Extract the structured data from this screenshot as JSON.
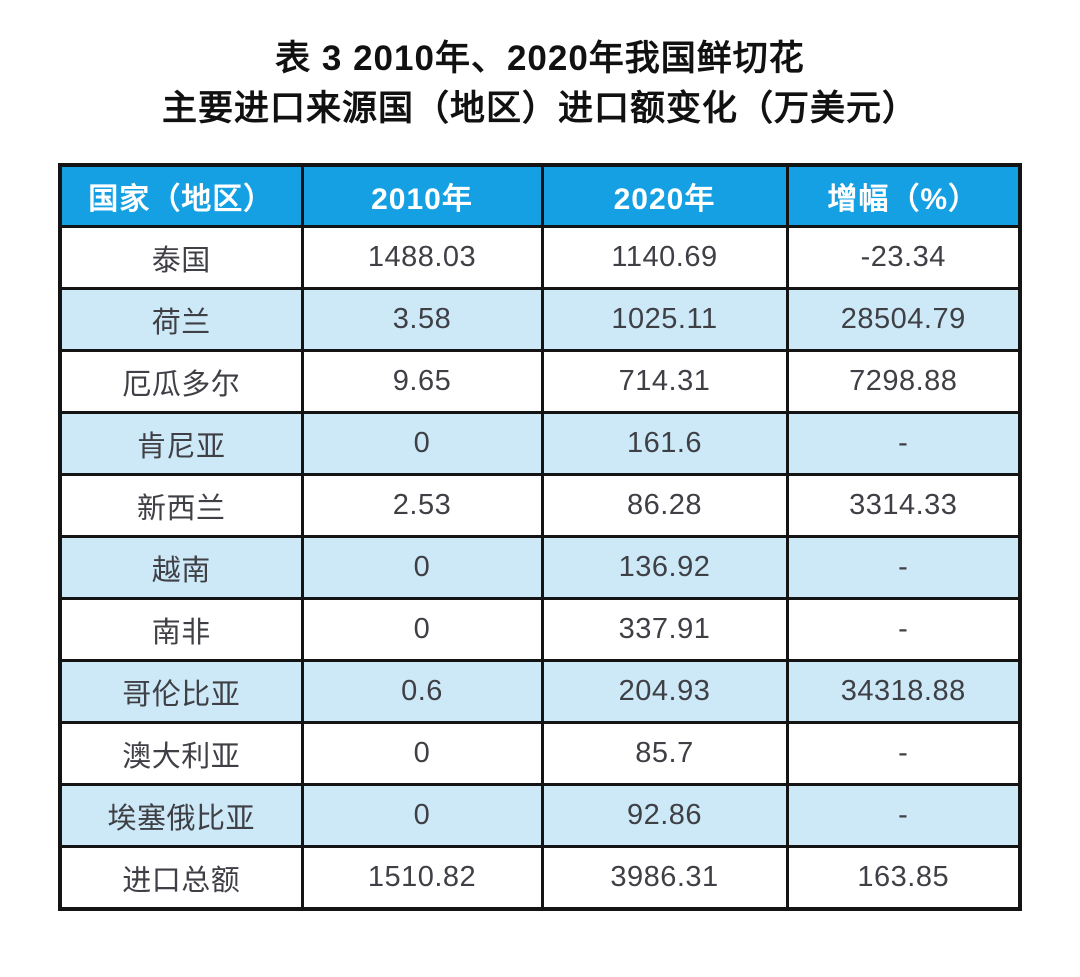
{
  "title": {
    "line1": "表 3  2010年、2020年我国鲜切花",
    "line2": "主要进口来源国（地区）进口额变化（万美元）"
  },
  "table": {
    "columns": [
      "国家（地区）",
      "2010年",
      "2020年",
      "增幅（%）"
    ],
    "rows": [
      {
        "country": "泰国",
        "y2010": "1488.03",
        "y2020": "1140.69",
        "growth": "-23.34"
      },
      {
        "country": "荷兰",
        "y2010": "3.58",
        "y2020": "1025.11",
        "growth": "28504.79"
      },
      {
        "country": "厄瓜多尔",
        "y2010": "9.65",
        "y2020": "714.31",
        "growth": "7298.88"
      },
      {
        "country": "肯尼亚",
        "y2010": "0",
        "y2020": "161.6",
        "growth": "-"
      },
      {
        "country": "新西兰",
        "y2010": "2.53",
        "y2020": "86.28",
        "growth": "3314.33"
      },
      {
        "country": "越南",
        "y2010": "0",
        "y2020": "136.92",
        "growth": "-"
      },
      {
        "country": "南非",
        "y2010": "0",
        "y2020": "337.91",
        "growth": "-"
      },
      {
        "country": "哥伦比亚",
        "y2010": "0.6",
        "y2020": "204.93",
        "growth": "34318.88"
      },
      {
        "country": "澳大利亚",
        "y2010": "0",
        "y2020": "85.7",
        "growth": "-"
      },
      {
        "country": "埃塞俄比亚",
        "y2010": "0",
        "y2020": "92.86",
        "growth": "-"
      },
      {
        "country": "进口总额",
        "y2010": "1510.82",
        "y2020": "3986.31",
        "growth": "163.85"
      }
    ]
  },
  "chart_data": {
    "type": "table",
    "title": "表 3 2010年、2020年我国鲜切花主要进口来源国（地区）进口额变化（万美元）",
    "columns": [
      "国家（地区）",
      "2010年",
      "2020年",
      "增幅（%）"
    ],
    "rows": [
      [
        "泰国",
        1488.03,
        1140.69,
        -23.34
      ],
      [
        "荷兰",
        3.58,
        1025.11,
        28504.79
      ],
      [
        "厄瓜多尔",
        9.65,
        714.31,
        7298.88
      ],
      [
        "肯尼亚",
        0,
        161.6,
        "-"
      ],
      [
        "新西兰",
        2.53,
        86.28,
        3314.33
      ],
      [
        "越南",
        0,
        136.92,
        "-"
      ],
      [
        "南非",
        0,
        337.91,
        "-"
      ],
      [
        "哥伦比亚",
        0.6,
        204.93,
        34318.88
      ],
      [
        "澳大利亚",
        0,
        85.7,
        "-"
      ],
      [
        "埃塞俄比亚",
        0,
        92.86,
        "-"
      ],
      [
        "进口总额",
        1510.82,
        3986.31,
        163.85
      ]
    ]
  },
  "colors": {
    "header_bg": "#14A0E2",
    "header_text": "#FFFFFF",
    "row_bg": "#FFFFFF",
    "row_alt_bg": "#CDE9F7",
    "border": "#141414",
    "body_text": "#3F3F46",
    "title_text": "#111111"
  }
}
